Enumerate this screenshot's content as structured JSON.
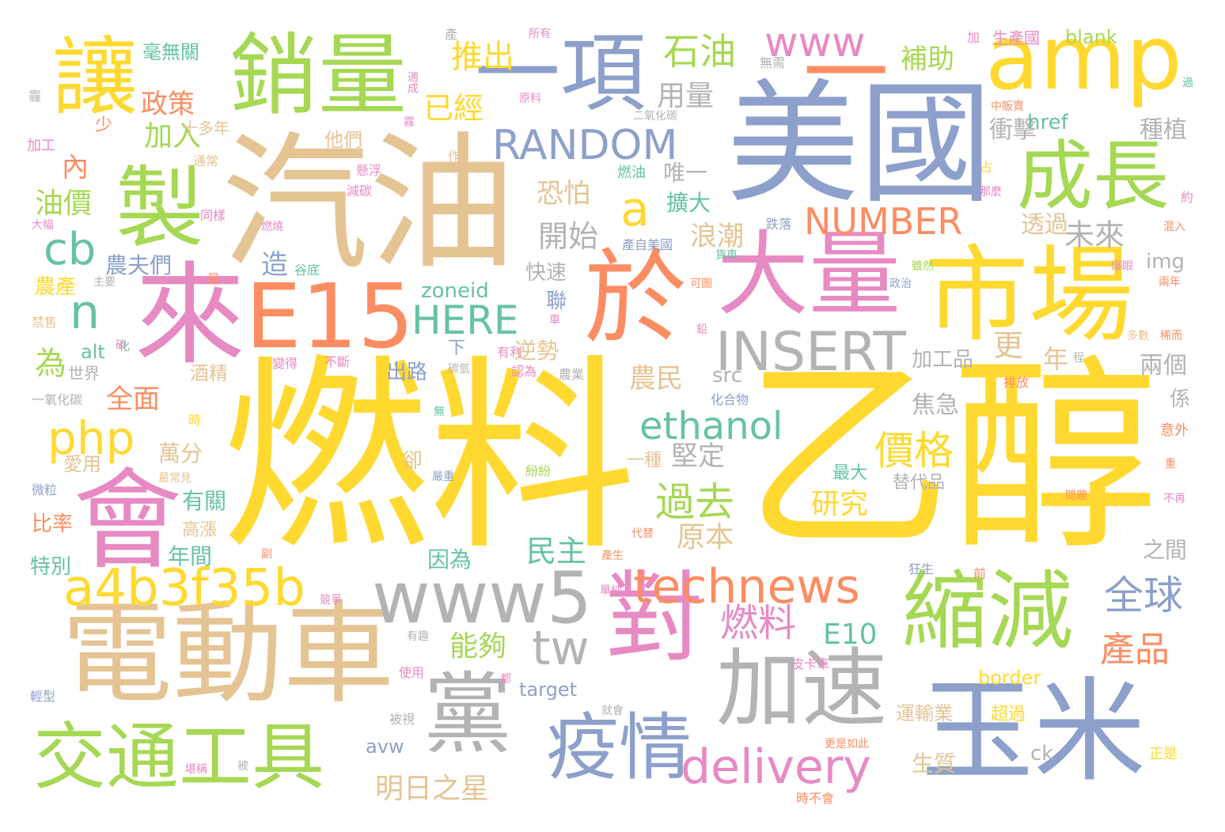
{
  "palette": {
    "yellow": "#FFD92F",
    "tan": "#E5C494",
    "blue": "#8DA0CB",
    "green": "#A6D854",
    "orange": "#FC8D62",
    "pink": "#E78AC3",
    "teal": "#66C2A5",
    "gray": "#B3B3B3"
  },
  "words": [
    {
      "text": "燃料",
      "color": "yellow"
    },
    {
      "text": "乙醇",
      "color": "yellow"
    },
    {
      "text": "汽油",
      "color": "tan"
    },
    {
      "text": "美國",
      "color": "blue"
    },
    {
      "text": "電動車",
      "color": "tan"
    },
    {
      "text": "來",
      "color": "pink"
    },
    {
      "text": "會",
      "color": "pink"
    },
    {
      "text": "市場",
      "color": "yellow"
    },
    {
      "text": "玉米",
      "color": "blue"
    },
    {
      "text": "於",
      "color": "orange"
    },
    {
      "text": "E15",
      "color": "orange"
    },
    {
      "text": "大量",
      "color": "pink"
    },
    {
      "text": "銷量",
      "color": "green"
    },
    {
      "text": "製",
      "color": "green"
    },
    {
      "text": "縮減",
      "color": "green"
    },
    {
      "text": "加速",
      "color": "gray"
    },
    {
      "text": "對",
      "color": "pink"
    },
    {
      "text": "一項",
      "color": "blue"
    },
    {
      "text": "讓",
      "color": "yellow"
    },
    {
      "text": "amp",
      "color": "yellow"
    },
    {
      "text": "成長",
      "color": "green"
    },
    {
      "text": "黨",
      "color": "gray"
    },
    {
      "text": "交通工具",
      "color": "green"
    },
    {
      "text": "疫情",
      "color": "blue"
    },
    {
      "text": "www5",
      "color": "gray"
    },
    {
      "text": "INSERT",
      "color": "gray"
    },
    {
      "text": "a4b3f35b",
      "color": "yellow"
    },
    {
      "text": "technews",
      "color": "orange"
    },
    {
      "text": "delivery",
      "color": "pink"
    },
    {
      "text": "RANDOM",
      "color": "blue"
    },
    {
      "text": "www",
      "color": "pink"
    },
    {
      "text": "NUMBER",
      "color": "orange"
    },
    {
      "text": "HERE",
      "color": "teal"
    },
    {
      "text": "ethanol",
      "color": "teal"
    },
    {
      "text": "php",
      "color": "yellow"
    },
    {
      "text": "cb",
      "color": "teal"
    },
    {
      "text": "a",
      "color": "yellow"
    },
    {
      "text": "n",
      "color": "teal"
    },
    {
      "text": "tw",
      "color": "gray"
    },
    {
      "text": "一",
      "color": "orange"
    },
    {
      "text": "全球",
      "color": "blue"
    },
    {
      "text": "產品",
      "color": "orange"
    },
    {
      "text": "價格",
      "color": "yellow"
    },
    {
      "text": "過去",
      "color": "green"
    },
    {
      "text": "燃料",
      "color": "pink"
    },
    {
      "text": "E10",
      "color": "teal"
    },
    {
      "text": "石油",
      "color": "green"
    },
    {
      "text": "推出",
      "color": "yellow"
    },
    {
      "text": "補助",
      "color": "green"
    },
    {
      "text": "已經",
      "color": "yellow"
    },
    {
      "text": "用量",
      "color": "gray"
    },
    {
      "text": "政策",
      "color": "orange"
    },
    {
      "text": "加入",
      "color": "green"
    },
    {
      "text": "毫無關",
      "color": "teal"
    },
    {
      "text": "內",
      "color": "orange"
    },
    {
      "text": "油價",
      "color": "green"
    },
    {
      "text": "為",
      "color": "green"
    },
    {
      "text": "全面",
      "color": "orange"
    },
    {
      "text": "民主",
      "color": "teal"
    },
    {
      "text": "原本",
      "color": "tan"
    },
    {
      "text": "明日之星",
      "color": "tan"
    },
    {
      "text": "開始",
      "color": "gray"
    },
    {
      "text": "恐怕",
      "color": "tan"
    },
    {
      "text": "唯一",
      "color": "gray"
    },
    {
      "text": "擴大",
      "color": "teal"
    },
    {
      "text": "浪潮",
      "color": "tan"
    },
    {
      "text": "未來",
      "color": "gray"
    },
    {
      "text": "透過",
      "color": "tan"
    },
    {
      "text": "衝擊",
      "color": "gray"
    },
    {
      "text": "種植",
      "color": "gray"
    },
    {
      "text": "更",
      "color": "tan"
    },
    {
      "text": "年",
      "color": "tan"
    },
    {
      "text": "加工品",
      "color": "gray"
    },
    {
      "text": "兩個",
      "color": "gray"
    },
    {
      "text": "焦急",
      "color": "gray"
    },
    {
      "text": "農民",
      "color": "tan"
    },
    {
      "text": "堅定",
      "color": "gray"
    },
    {
      "text": "研究",
      "color": "yellow"
    },
    {
      "text": "能夠",
      "color": "green"
    },
    {
      "text": "造",
      "color": "blue"
    },
    {
      "text": "農夫們",
      "color": "blue"
    },
    {
      "text": "農產",
      "color": "yellow"
    },
    {
      "text": "他們",
      "color": "tan"
    },
    {
      "text": "快速",
      "color": "gray"
    },
    {
      "text": "聯",
      "color": "blue"
    },
    {
      "text": "逆勢",
      "color": "tan"
    },
    {
      "text": "出路",
      "color": "blue"
    },
    {
      "text": "酒精",
      "color": "tan"
    },
    {
      "text": "萬分",
      "color": "tan"
    },
    {
      "text": "愛用",
      "color": "tan"
    },
    {
      "text": "有關",
      "color": "teal"
    },
    {
      "text": "年間",
      "color": "teal"
    },
    {
      "text": "特別",
      "color": "teal"
    },
    {
      "text": "比率",
      "color": "orange"
    },
    {
      "text": "高漲",
      "color": "tan"
    },
    {
      "text": "因為",
      "color": "teal"
    },
    {
      "text": "zoneid",
      "color": "teal"
    },
    {
      "text": "alt",
      "color": "teal"
    },
    {
      "text": "src",
      "color": "gray"
    },
    {
      "text": "img",
      "color": "gray"
    },
    {
      "text": "href",
      "color": "teal"
    },
    {
      "text": "blank",
      "color": "green"
    },
    {
      "text": "target",
      "color": "blue"
    },
    {
      "text": "border",
      "color": "yellow"
    },
    {
      "text": "avw",
      "color": "blue"
    },
    {
      "text": "ck",
      "color": "gray"
    },
    {
      "text": "生質",
      "color": "tan"
    },
    {
      "text": "運輸業",
      "color": "tan"
    },
    {
      "text": "超過",
      "color": "yellow"
    },
    {
      "text": "替代品",
      "color": "gray"
    },
    {
      "text": "最大",
      "color": "teal"
    },
    {
      "text": "之間",
      "color": "gray"
    },
    {
      "text": "係",
      "color": "gray"
    },
    {
      "text": "一種",
      "color": "tan"
    },
    {
      "text": "卻",
      "color": "tan"
    },
    {
      "text": "下",
      "color": "blue"
    },
    {
      "text": "世界",
      "color": "gray"
    },
    {
      "text": "少",
      "color": "orange"
    },
    {
      "text": "十多年",
      "color": "tan"
    },
    {
      "text": "生產國",
      "color": "pink"
    },
    {
      "text": "加",
      "color": "pink"
    },
    {
      "text": "所有",
      "color": "pink"
    },
    {
      "text": "產",
      "color": "gray"
    },
    {
      "text": "無需",
      "color": "gray"
    },
    {
      "text": "原料",
      "color": "pink"
    },
    {
      "text": "適成",
      "color": "pink"
    },
    {
      "text": "二氧化碳",
      "color": "gray"
    },
    {
      "text": "中販賣",
      "color": "orange"
    },
    {
      "text": "燃油",
      "color": "teal"
    },
    {
      "text": "懸浮",
      "color": "pink"
    },
    {
      "text": "作",
      "color": "tan"
    },
    {
      "text": "通常",
      "color": "tan"
    },
    {
      "text": "減碳",
      "color": "pink"
    },
    {
      "text": "同樣",
      "color": "pink"
    },
    {
      "text": "燃燒",
      "color": "pink"
    },
    {
      "text": "谷底",
      "color": "teal"
    },
    {
      "text": "主要",
      "color": "gray"
    },
    {
      "text": "大幅",
      "color": "pink"
    },
    {
      "text": "禁售",
      "color": "tan"
    },
    {
      "text": "加工",
      "color": "pink"
    },
    {
      "text": "一氧化碳",
      "color": "gray"
    },
    {
      "text": "產自美國",
      "color": "blue"
    },
    {
      "text": "跌落",
      "color": "blue"
    },
    {
      "text": "貨車",
      "color": "teal"
    },
    {
      "text": "雖然",
      "color": "green"
    },
    {
      "text": "爆眼",
      "color": "pink"
    },
    {
      "text": "可圖",
      "color": "orange"
    },
    {
      "text": "政治",
      "color": "blue"
    },
    {
      "text": "化合物",
      "color": "blue"
    },
    {
      "text": "排放",
      "color": "orange"
    },
    {
      "text": "多數",
      "color": "tan"
    },
    {
      "text": "意外",
      "color": "orange"
    },
    {
      "text": "問題",
      "color": "orange"
    },
    {
      "text": "不再",
      "color": "pink"
    },
    {
      "text": "正是",
      "color": "yellow"
    },
    {
      "text": "更是如此",
      "color": "orange"
    },
    {
      "text": "時不會",
      "color": "orange"
    },
    {
      "text": "被視",
      "color": "gray"
    },
    {
      "text": "就會",
      "color": "gray"
    },
    {
      "text": "堪稱",
      "color": "pink"
    },
    {
      "text": "使用",
      "color": "pink"
    },
    {
      "text": "輕型",
      "color": "blue"
    },
    {
      "text": "皮卡車",
      "color": "pink"
    },
    {
      "text": "狂生",
      "color": "blue"
    },
    {
      "text": "前",
      "color": "orange"
    },
    {
      "text": "代替",
      "color": "orange"
    },
    {
      "text": "產生",
      "color": "orange"
    },
    {
      "text": "副",
      "color": "orange"
    },
    {
      "text": "微粒",
      "color": "blue"
    },
    {
      "text": "最常見",
      "color": "tan"
    },
    {
      "text": "紛紛",
      "color": "green"
    },
    {
      "text": "嚴重",
      "color": "blue"
    },
    {
      "text": "無",
      "color": "teal"
    },
    {
      "text": "時",
      "color": "yellow"
    },
    {
      "text": "化",
      "color": "teal"
    },
    {
      "text": "有利",
      "color": "pink"
    },
    {
      "text": "認為",
      "color": "pink"
    },
    {
      "text": "農業",
      "color": "gray"
    },
    {
      "text": "不斷",
      "color": "pink"
    },
    {
      "text": "變得",
      "color": "pink"
    },
    {
      "text": "碳",
      "color": "pink"
    },
    {
      "text": "鉛",
      "color": "pink"
    },
    {
      "text": "車",
      "color": "pink"
    },
    {
      "text": "霧",
      "color": "pink"
    },
    {
      "text": "占",
      "color": "yellow"
    },
    {
      "text": "那麼",
      "color": "pink"
    },
    {
      "text": "約",
      "color": "pink"
    },
    {
      "text": "混入",
      "color": "orange"
    },
    {
      "text": "兩年",
      "color": "orange"
    },
    {
      "text": "程",
      "color": "gray"
    },
    {
      "text": "過",
      "color": "teal"
    },
    {
      "text": "霾",
      "color": "gray"
    },
    {
      "text": "最",
      "color": "orange"
    },
    {
      "text": "都",
      "color": "pink"
    },
    {
      "text": "有趣",
      "color": "gray"
    },
    {
      "text": "稀而",
      "color": "orange"
    },
    {
      "text": "碳氫",
      "color": "gray"
    },
    {
      "text": "重",
      "color": "orange"
    },
    {
      "text": "競爭",
      "color": "pink"
    },
    {
      "text": "單純",
      "color": "pink"
    },
    {
      "text": "被",
      "color": "gray"
    }
  ]
}
